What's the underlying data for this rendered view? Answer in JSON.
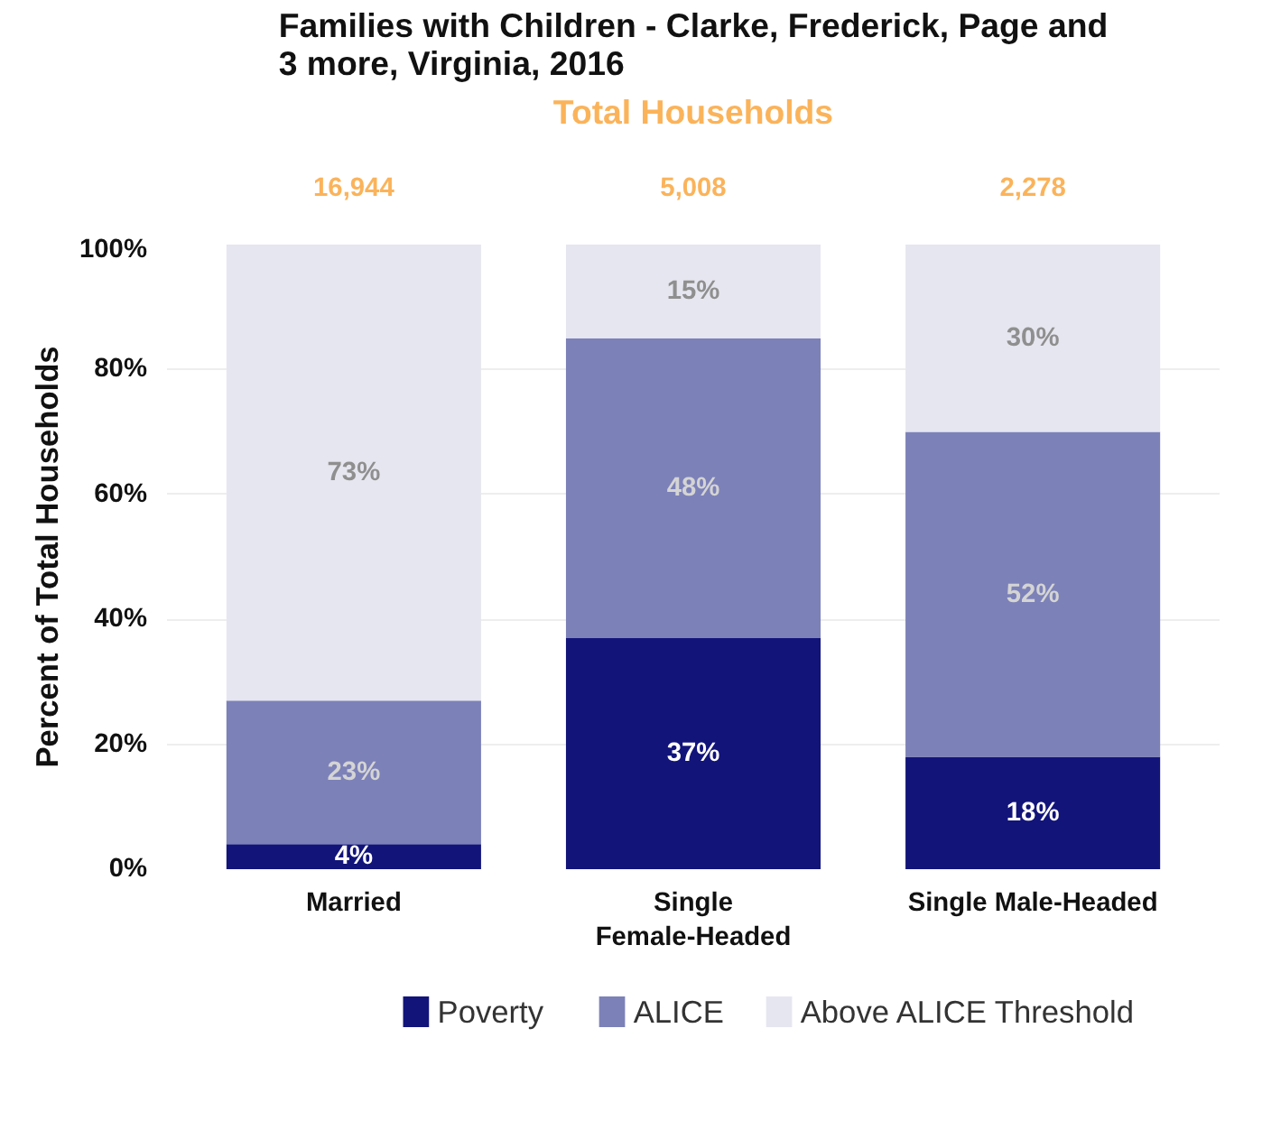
{
  "chart_data": {
    "type": "bar",
    "stacked": true,
    "title": "Families with Children - Clarke, Frederick, Page and 3 more, Virginia, 2016",
    "ylabel": "Percent of Total Households",
    "annotations": [
      "Total Households",
      "16,944",
      "5,008",
      "2,278"
    ],
    "categories": [
      "Married",
      "Single\nFemale-Headed",
      "Single Male-Headed"
    ],
    "series": [
      {
        "name": "Poverty",
        "color": "#12147a",
        "values": [
          4,
          37,
          18
        ],
        "value_labels": [
          "4%",
          "37%",
          "18%"
        ]
      },
      {
        "name": "ALICE",
        "color": "#7c81b8",
        "values": [
          23,
          48,
          52
        ],
        "value_labels": [
          "23%",
          "48%",
          "52%"
        ]
      },
      {
        "name": "Above ALICE Threshold",
        "color": "#e6e6f0",
        "values": [
          73,
          15,
          30
        ],
        "value_labels": [
          "73%",
          "15%",
          "30%"
        ]
      }
    ],
    "ylim": [
      0,
      100
    ],
    "yticks": [
      {
        "value": 0,
        "label": "0%"
      },
      {
        "value": 20,
        "label": "20%"
      },
      {
        "value": 40,
        "label": "40%"
      },
      {
        "value": 60,
        "label": "60%"
      },
      {
        "value": 80,
        "label": "80%"
      },
      {
        "value": 100,
        "label": "100%"
      }
    ],
    "grid": "y",
    "legend": "bottom"
  }
}
